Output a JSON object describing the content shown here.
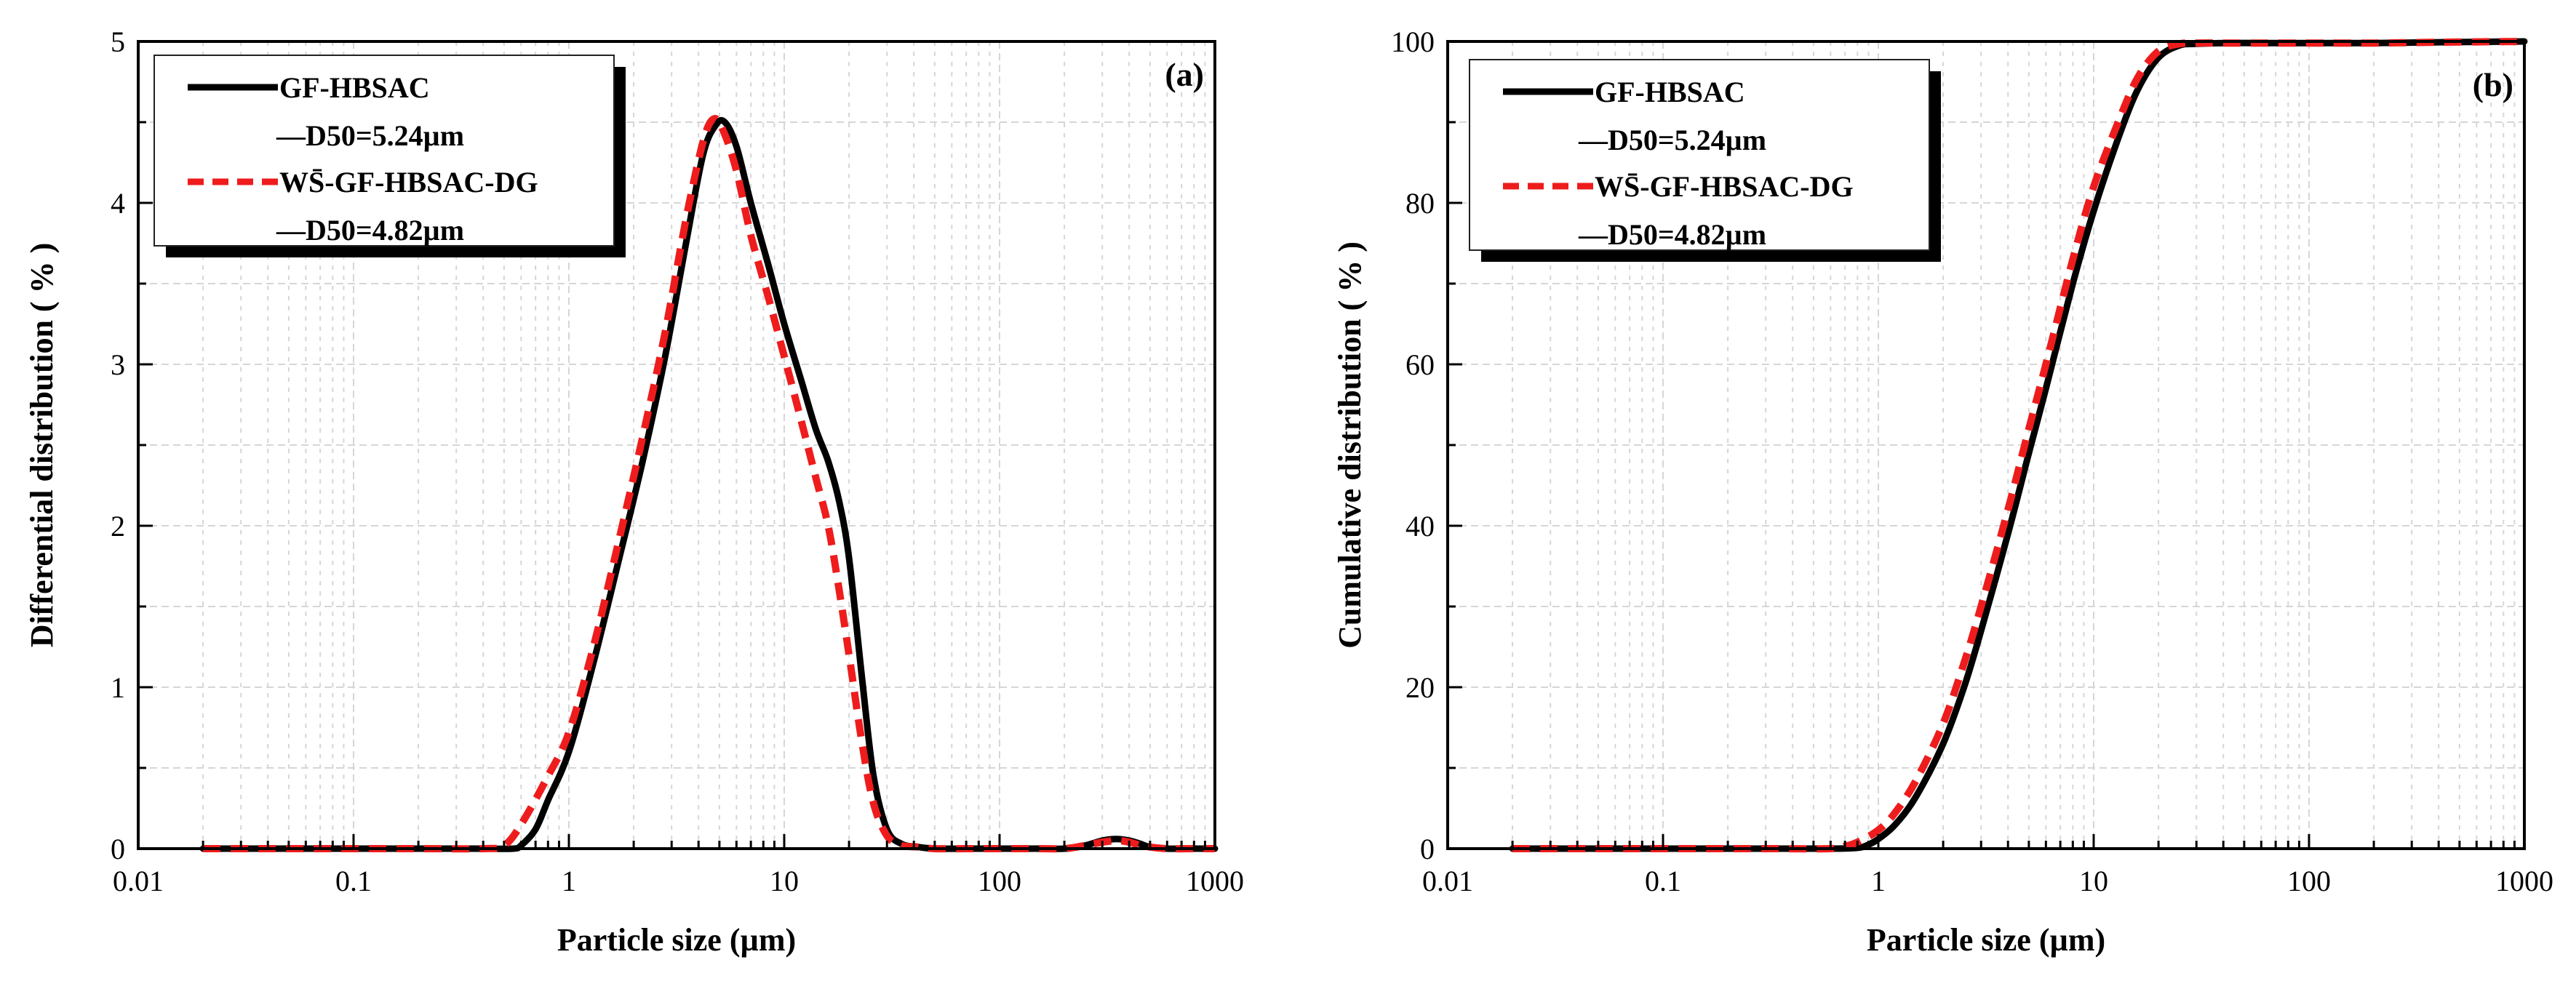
{
  "colors": {
    "series_gf": "#000000",
    "series_ws": "#ee1c1c",
    "grid": "#d6d6d6",
    "axis": "#000000"
  },
  "chart_data": [
    {
      "panel_label": "(a)",
      "type": "line",
      "xscale": "log",
      "xlabel": "Particle size (µm)",
      "ylabel": "Differential distribution ( % )",
      "xlim": [
        0.01,
        1000
      ],
      "ylim": [
        0,
        5
      ],
      "xticks": [
        0.01,
        0.1,
        1,
        10,
        100,
        1000
      ],
      "xtick_labels": [
        "0.01",
        "0.1",
        "1",
        "10",
        "100",
        "1000"
      ],
      "yticks": [
        0,
        1,
        2,
        3,
        4,
        5
      ],
      "ytick_labels": [
        "0",
        "1",
        "2",
        "3",
        "4",
        "5"
      ],
      "grid": true,
      "legend_position": "top-left",
      "legend": [
        {
          "label": "GF-HBSAC",
          "style": "solid"
        },
        {
          "label": "—D50=5.24µm",
          "style": "note"
        },
        {
          "label": "WS̄-GF-HBSAC-DG",
          "style": "dashed"
        },
        {
          "label": "—D50=4.82µm",
          "style": "note"
        }
      ],
      "series": [
        {
          "name": "GF-HBSAC",
          "style": "solid",
          "x": [
            0.02,
            0.05,
            0.1,
            0.2,
            0.4,
            0.55,
            0.6,
            0.7,
            0.8,
            1.0,
            1.3,
            1.7,
            2.2,
            2.8,
            3.5,
            4.2,
            4.8,
            5.3,
            6,
            7,
            8.5,
            10,
            12,
            14,
            16,
            18,
            20,
            23,
            26,
            30,
            35,
            42,
            50,
            70,
            100,
            150,
            200,
            250,
            300,
            350,
            400,
            450,
            500,
            600,
            800,
            1000
          ],
          "y": [
            0,
            0,
            0,
            0,
            0,
            0,
            0.02,
            0.12,
            0.3,
            0.6,
            1.15,
            1.78,
            2.4,
            3.05,
            3.75,
            4.3,
            4.48,
            4.5,
            4.35,
            4.0,
            3.6,
            3.25,
            2.9,
            2.6,
            2.4,
            2.15,
            1.8,
            1.05,
            0.45,
            0.12,
            0.03,
            0.01,
            0,
            0,
            0,
            0,
            0,
            0.02,
            0.05,
            0.06,
            0.05,
            0.03,
            0.01,
            0,
            0,
            0
          ]
        },
        {
          "name": "WS̄-GF-HBSAC-DG",
          "style": "dashed",
          "x": [
            0.02,
            0.05,
            0.1,
            0.2,
            0.4,
            0.5,
            0.6,
            0.8,
            1.0,
            1.3,
            1.7,
            2.2,
            2.8,
            3.5,
            4.2,
            4.7,
            5.2,
            6,
            7,
            8.5,
            10,
            12,
            14,
            16,
            18,
            20,
            23,
            26,
            30,
            35,
            42,
            50,
            70,
            100,
            150,
            200,
            250,
            300,
            350,
            400,
            450,
            500,
            600,
            800,
            1000
          ],
          "y": [
            0,
            0,
            0,
            0,
            0,
            0.02,
            0.15,
            0.45,
            0.72,
            1.25,
            1.9,
            2.55,
            3.2,
            3.9,
            4.38,
            4.52,
            4.45,
            4.2,
            3.8,
            3.4,
            3.05,
            2.65,
            2.3,
            2.0,
            1.6,
            1.2,
            0.65,
            0.28,
            0.08,
            0.02,
            0.01,
            0,
            0,
            0,
            0,
            0,
            0.02,
            0.04,
            0.05,
            0.04,
            0.02,
            0.01,
            0,
            0,
            0
          ]
        }
      ]
    },
    {
      "panel_label": "(b)",
      "type": "line",
      "xscale": "log",
      "xlabel": "Particle size (µm)",
      "ylabel": "Cumulative distribution ( % )",
      "xlim": [
        0.01,
        1000
      ],
      "ylim": [
        0,
        100
      ],
      "xticks": [
        0.01,
        0.1,
        1,
        10,
        100,
        1000
      ],
      "xtick_labels": [
        "0.01",
        "0.1",
        "1",
        "10",
        "100",
        "1000"
      ],
      "yticks": [
        0,
        20,
        40,
        60,
        80,
        100
      ],
      "ytick_labels": [
        "0",
        "20",
        "40",
        "60",
        "80",
        "100"
      ],
      "grid": true,
      "legend_position": "top-left",
      "legend": [
        {
          "label": "GF-HBSAC",
          "style": "solid"
        },
        {
          "label": "—D50=5.24µm",
          "style": "note"
        },
        {
          "label": "WS̄-GF-HBSAC-DG",
          "style": "dashed"
        },
        {
          "label": "—D50=4.82µm",
          "style": "note"
        }
      ],
      "series": [
        {
          "name": "GF-HBSAC",
          "style": "solid",
          "x": [
            0.02,
            0.05,
            0.1,
            0.3,
            0.6,
            0.8,
            0.9,
            1.0,
            1.2,
            1.5,
            2,
            2.5,
            3,
            4,
            5,
            6,
            8,
            10,
            13,
            16,
            20,
            25,
            30,
            40,
            60,
            100,
            200,
            400,
            1000
          ],
          "y": [
            0,
            0,
            0,
            0,
            0,
            0.1,
            0.5,
            1.2,
            3,
            6.5,
            13,
            20,
            27,
            39,
            49,
            57,
            70,
            79,
            88,
            94,
            98,
            99.5,
            99.7,
            99.8,
            99.8,
            99.8,
            99.8,
            99.9,
            100
          ]
        },
        {
          "name": "WS̄-GF-HBSAC-DG",
          "style": "dashed",
          "x": [
            0.02,
            0.05,
            0.1,
            0.3,
            0.6,
            0.7,
            0.8,
            1.0,
            1.2,
            1.5,
            2,
            2.5,
            3,
            4,
            5,
            6,
            8,
            10,
            13,
            16,
            20,
            25,
            30,
            40,
            60,
            100,
            200,
            400,
            1000
          ],
          "y": [
            0,
            0,
            0,
            0,
            0,
            0.3,
            0.8,
            2.3,
            4.5,
            8.5,
            15.5,
            23,
            30,
            42,
            52,
            60,
            73,
            82,
            90,
            95.5,
            98.8,
            99.7,
            99.8,
            99.8,
            99.8,
            99.8,
            99.8,
            99.9,
            100
          ]
        }
      ]
    }
  ]
}
